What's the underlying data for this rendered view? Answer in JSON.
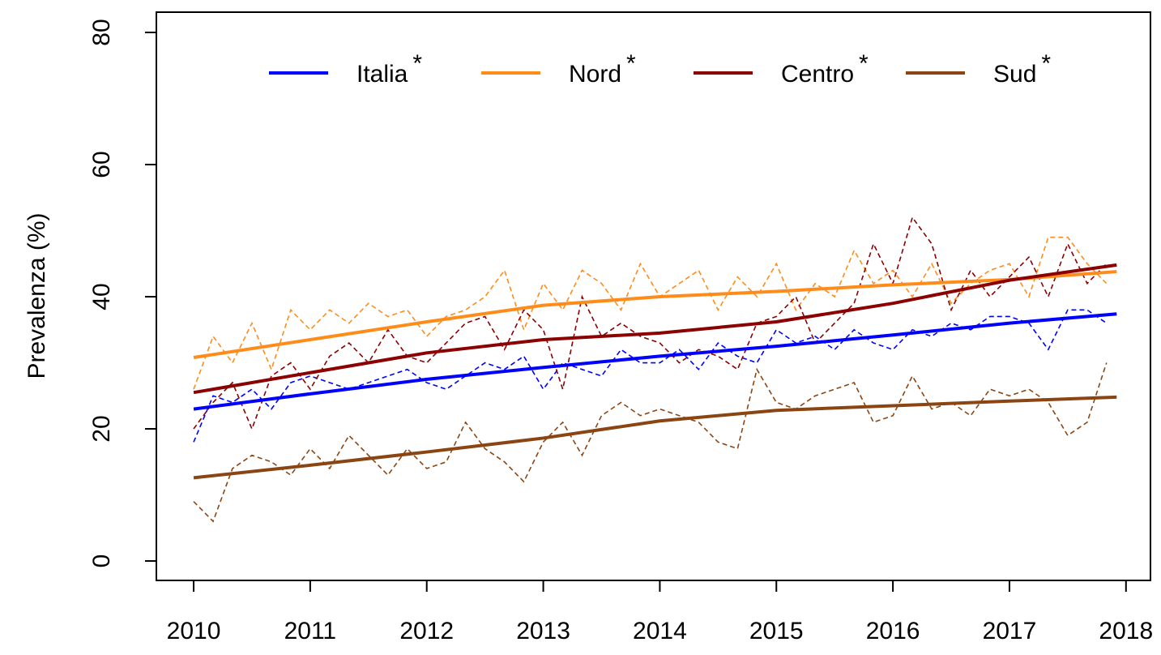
{
  "chart_data": {
    "type": "line",
    "y_label": "Prevalenza (%)",
    "xlim": [
      2009.68,
      2018.21
    ],
    "ylim": [
      -2.94,
      83.07
    ],
    "xticks": [
      2010,
      2011,
      2012,
      2013,
      2014,
      2015,
      2016,
      2017,
      2018
    ],
    "yticks": [
      0,
      20,
      40,
      60,
      80
    ],
    "legend": "top",
    "x": [
      2010,
      2010.167,
      2010.333,
      2010.5,
      2010.667,
      2010.833,
      2011,
      2011.167,
      2011.333,
      2011.5,
      2011.667,
      2011.833,
      2012,
      2012.167,
      2012.333,
      2012.5,
      2012.667,
      2012.833,
      2013,
      2013.167,
      2013.333,
      2013.5,
      2013.667,
      2013.833,
      2014,
      2014.167,
      2014.333,
      2014.5,
      2014.667,
      2014.833,
      2015,
      2015.167,
      2015.333,
      2015.5,
      2015.667,
      2015.833,
      2016,
      2016.167,
      2016.333,
      2016.5,
      2016.667,
      2016.833,
      2017,
      2017.167,
      2017.333,
      2017.5,
      2017.667,
      2017.833
    ],
    "trend_x": [
      2010,
      2011,
      2012,
      2013,
      2014,
      2015,
      2016,
      2017,
      2017.92
    ],
    "series": [
      {
        "name": "Italia",
        "name_suffix": "*",
        "color": "#0000ff",
        "trend": [
          23,
          25.3,
          27.5,
          29.3,
          31,
          32.5,
          34.2,
          36,
          37.4
        ],
        "values": [
          18,
          25,
          24,
          26,
          23,
          27,
          28,
          27,
          26,
          27,
          28,
          29,
          27,
          26,
          28,
          30,
          29,
          31,
          26,
          30,
          29,
          28,
          32,
          30,
          30,
          32,
          29,
          33,
          31,
          30,
          35,
          33,
          34,
          32,
          35,
          33,
          32,
          35,
          34,
          36,
          35,
          37,
          37,
          36,
          32,
          38,
          38,
          36
        ]
      },
      {
        "name": "Nord",
        "name_suffix": "*",
        "color": "#ff8c1a",
        "trend": [
          30.8,
          33.5,
          36.2,
          38.7,
          40,
          40.8,
          41.8,
          42.6,
          43.8
        ],
        "values": [
          26,
          34,
          30,
          36,
          29,
          38,
          35,
          38,
          36,
          39,
          37,
          38,
          34,
          37,
          38,
          40,
          44,
          35,
          42,
          38,
          44,
          42,
          38,
          45,
          40,
          42,
          44,
          38,
          43,
          40,
          45,
          38,
          42,
          40,
          47,
          42,
          44,
          40,
          45,
          39,
          42,
          44,
          45,
          40,
          49,
          49,
          45,
          42
        ]
      },
      {
        "name": "Centro",
        "name_suffix": "*",
        "color": "#8b0000",
        "trend": [
          25.5,
          28.5,
          31.5,
          33.5,
          34.5,
          36.2,
          39,
          42.5,
          44.8
        ],
        "values": [
          20,
          24,
          27,
          20,
          28,
          30,
          26,
          31,
          33,
          30,
          35,
          31,
          30,
          33,
          36,
          37,
          32,
          38,
          35,
          26,
          40,
          34,
          36,
          34,
          33,
          30,
          32,
          31,
          29,
          36,
          37,
          40,
          33,
          36,
          39,
          48,
          42,
          52,
          48,
          38,
          44,
          40,
          43,
          46,
          40,
          48,
          42,
          45
        ]
      },
      {
        "name": "Sud",
        "name_suffix": "*",
        "color": "#8b4513",
        "trend": [
          12.6,
          14.5,
          16.5,
          18.6,
          21.2,
          22.8,
          23.5,
          24.2,
          24.8
        ],
        "values": [
          9,
          6,
          14,
          16,
          15,
          13,
          17,
          14,
          19,
          16,
          13,
          17,
          14,
          15,
          21,
          17,
          15,
          12,
          18,
          21,
          16,
          22,
          24,
          22,
          23,
          22,
          21,
          18,
          17,
          29,
          24,
          23,
          25,
          26,
          27,
          21,
          22,
          28,
          23,
          24,
          22,
          26,
          25,
          26,
          24,
          19,
          21,
          30
        ]
      }
    ]
  }
}
